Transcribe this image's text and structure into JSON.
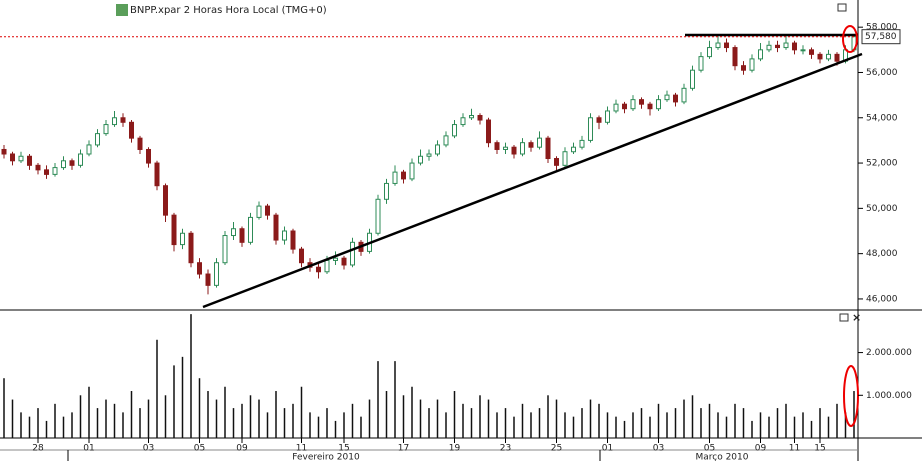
{
  "chart_data": {
    "type": "candlestick",
    "title": "BNPP.xpar 2 Horas Hora Local (TMG+0)",
    "up_color": "#2e8b57",
    "down_color": "#8b1a1a",
    "volume_color": "#111111",
    "categories": [
      null,
      null,
      null,
      null,
      "28",
      null,
      null,
      null,
      null,
      null,
      "01",
      null,
      null,
      null,
      null,
      null,
      null,
      "03",
      null,
      null,
      null,
      null,
      null,
      "05",
      null,
      null,
      null,
      null,
      "09",
      null,
      null,
      null,
      null,
      null,
      null,
      "11",
      null,
      null,
      null,
      null,
      "15",
      null,
      null,
      null,
      null,
      null,
      null,
      "17",
      null,
      null,
      null,
      null,
      null,
      "19",
      null,
      null,
      null,
      null,
      null,
      "23",
      null,
      null,
      null,
      null,
      null,
      "25",
      null,
      null,
      null,
      null,
      null,
      "01",
      null,
      null,
      null,
      null,
      null,
      "03",
      null,
      null,
      null,
      null,
      null,
      "05",
      null,
      null,
      null,
      null,
      null,
      "09",
      null,
      null,
      null,
      "11",
      null,
      null,
      "15",
      null,
      null,
      null,
      null
    ],
    "months": [
      "Fevereiro 2010",
      "Março 2010"
    ],
    "open": [
      52600,
      52400,
      52100,
      52300,
      51900,
      51700,
      51500,
      51800,
      52100,
      51900,
      52400,
      52800,
      53300,
      53700,
      54000,
      53800,
      53100,
      52600,
      52000,
      51000,
      49700,
      48400,
      48900,
      47600,
      47100,
      46600,
      47600,
      48800,
      49100,
      48500,
      49600,
      50100,
      49700,
      48600,
      49000,
      48200,
      47600,
      47400,
      47200,
      47700,
      47800,
      47500,
      48500,
      48100,
      48900,
      50400,
      51100,
      51600,
      51300,
      52000,
      52300,
      52400,
      52800,
      53200,
      53700,
      54000,
      54100,
      53900,
      52900,
      52600,
      52700,
      52400,
      52900,
      52700,
      53100,
      52200,
      51900,
      52500,
      52700,
      53000,
      54000,
      53800,
      54300,
      54600,
      54400,
      54800,
      54600,
      54400,
      54800,
      55000,
      54700,
      55300,
      56100,
      56700,
      57100,
      57300,
      57100,
      56300,
      56100,
      56600,
      57000,
      57200,
      57100,
      57300,
      57000,
      57000,
      56800,
      56600,
      56800,
      56500,
      57000
    ],
    "high": [
      52800,
      52500,
      52500,
      52400,
      52000,
      51900,
      52000,
      52300,
      52200,
      52600,
      53000,
      53500,
      53900,
      54300,
      54200,
      53900,
      53200,
      52700,
      52100,
      51100,
      49800,
      49100,
      49000,
      47800,
      47300,
      47800,
      49000,
      49400,
      49200,
      49800,
      50300,
      50200,
      49800,
      49200,
      49100,
      48300,
      47800,
      47600,
      47900,
      48100,
      47900,
      48700,
      48600,
      49100,
      50600,
      51300,
      51900,
      51700,
      52200,
      52600,
      52600,
      53000,
      53400,
      53900,
      54200,
      54400,
      54200,
      54000,
      53000,
      52900,
      52800,
      53100,
      53000,
      53400,
      53200,
      52300,
      52700,
      52900,
      53200,
      54200,
      54100,
      54500,
      54800,
      54700,
      55000,
      54900,
      54700,
      55000,
      55200,
      55100,
      55500,
      56300,
      56900,
      57400,
      57600,
      57500,
      57200,
      56500,
      56800,
      57300,
      57400,
      57400,
      57600,
      57400,
      57200,
      57100,
      56900,
      57000,
      56900,
      57200,
      57700
    ],
    "low": [
      52200,
      51900,
      52000,
      51700,
      51500,
      51300,
      51400,
      51700,
      51700,
      51800,
      52300,
      52700,
      53200,
      53600,
      53600,
      52900,
      52400,
      51800,
      50800,
      49400,
      48100,
      48200,
      47400,
      46900,
      46200,
      46500,
      47500,
      48600,
      48300,
      48400,
      49500,
      49500,
      48400,
      48400,
      48000,
      47400,
      47200,
      46900,
      47100,
      47500,
      47300,
      47400,
      47900,
      48000,
      48800,
      50200,
      51000,
      51100,
      51200,
      51900,
      52100,
      52300,
      52700,
      53100,
      53600,
      53900,
      53700,
      52700,
      52400,
      52400,
      52200,
      52300,
      52500,
      52600,
      52000,
      51600,
      51800,
      52400,
      52600,
      52900,
      53500,
      53700,
      54200,
      54200,
      54300,
      54400,
      54100,
      54300,
      54700,
      54500,
      54600,
      55200,
      56000,
      56600,
      57000,
      56900,
      56100,
      55900,
      56000,
      56500,
      56900,
      56900,
      57000,
      56800,
      56800,
      56600,
      56400,
      56500,
      56300,
      56400,
      56900
    ],
    "close": [
      52400,
      52100,
      52300,
      51900,
      51700,
      51500,
      51800,
      52100,
      51900,
      52400,
      52800,
      53300,
      53700,
      54000,
      53800,
      53100,
      52600,
      52000,
      51000,
      49700,
      48400,
      48900,
      47600,
      47100,
      46600,
      47600,
      48800,
      49100,
      48500,
      49600,
      50100,
      49700,
      48600,
      49000,
      48200,
      47600,
      47400,
      47200,
      47700,
      47800,
      47500,
      48500,
      48100,
      48900,
      50400,
      51100,
      51600,
      51300,
      52000,
      52300,
      52400,
      52800,
      53200,
      53700,
      54000,
      54100,
      53900,
      52900,
      52600,
      52700,
      52400,
      52900,
      52700,
      53100,
      52200,
      51900,
      52500,
      52700,
      53000,
      54000,
      53800,
      54300,
      54600,
      54400,
      54800,
      54600,
      54400,
      54800,
      55000,
      54700,
      55300,
      56100,
      56700,
      57100,
      57300,
      57100,
      56300,
      56100,
      56600,
      57000,
      57200,
      57100,
      57300,
      57000,
      57000,
      56800,
      56600,
      56800,
      56500,
      57000,
      57580
    ],
    "volume": [
      1400000,
      900000,
      600000,
      500000,
      700000,
      400000,
      800000,
      500000,
      600000,
      1000000,
      1200000,
      700000,
      900000,
      800000,
      600000,
      1100000,
      700000,
      900000,
      2300000,
      1000000,
      1700000,
      1900000,
      2900000,
      1400000,
      1100000,
      900000,
      1200000,
      700000,
      800000,
      1000000,
      900000,
      600000,
      1100000,
      700000,
      800000,
      1200000,
      600000,
      500000,
      700000,
      400000,
      600000,
      800000,
      500000,
      900000,
      1800000,
      1100000,
      1800000,
      1000000,
      1200000,
      900000,
      700000,
      900000,
      600000,
      1100000,
      800000,
      700000,
      1000000,
      900000,
      600000,
      700000,
      500000,
      800000,
      600000,
      700000,
      1000000,
      900000,
      600000,
      500000,
      700000,
      900000,
      800000,
      600000,
      500000,
      400000,
      600000,
      700000,
      500000,
      800000,
      600000,
      700000,
      900000,
      1000000,
      700000,
      800000,
      600000,
      500000,
      800000,
      700000,
      400000,
      600000,
      500000,
      700000,
      800000,
      500000,
      600000,
      400000,
      700000,
      500000,
      800000,
      600000,
      1100000
    ],
    "last_price": {
      "value": 57580,
      "label": "57,580"
    },
    "ylim": [
      45600,
      59200
    ],
    "yticks": [
      {
        "value": 46000,
        "label": "46,000"
      },
      {
        "value": 48000,
        "label": "48,000"
      },
      {
        "value": 50000,
        "label": "50,000"
      },
      {
        "value": 52000,
        "label": "52,000"
      },
      {
        "value": 54000,
        "label": "54,000"
      },
      {
        "value": 56000,
        "label": "56,000"
      },
      {
        "value": 58000,
        "label": "58,000"
      }
    ],
    "y2lim": [
      0,
      2950000
    ],
    "y2ticks": [
      {
        "value": 1000000,
        "label": "1.000.000"
      },
      {
        "value": 2000000,
        "label": "2.000.000"
      }
    ]
  }
}
